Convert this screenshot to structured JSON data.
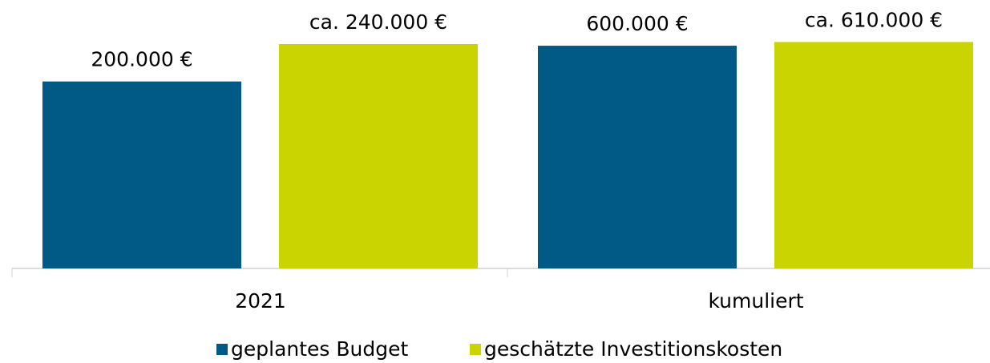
{
  "chart_data": [
    {
      "type": "bar",
      "categories": [
        "2021"
      ],
      "series": [
        {
          "name": "geplantes Budget",
          "color": "#005a85",
          "values": [
            200000
          ],
          "value_labels": [
            "200.000 €"
          ]
        },
        {
          "name": "geschätzte Investitionskosten",
          "color": "#c9d400",
          "values": [
            240000
          ],
          "value_labels": [
            "ca. 240.000 €"
          ]
        }
      ],
      "ylim": [
        0,
        270000
      ]
    },
    {
      "type": "bar",
      "categories": [
        "kumuliert"
      ],
      "series": [
        {
          "color": "#005a85",
          "values": [
            600000
          ],
          "value_labels": [
            "600.000 €"
          ]
        },
        {
          "color": "#c9d400",
          "values": [
            610000
          ],
          "value_labels": [
            "ca. 610.000 €"
          ]
        }
      ],
      "ylim": [
        0,
        680000
      ]
    }
  ]
}
